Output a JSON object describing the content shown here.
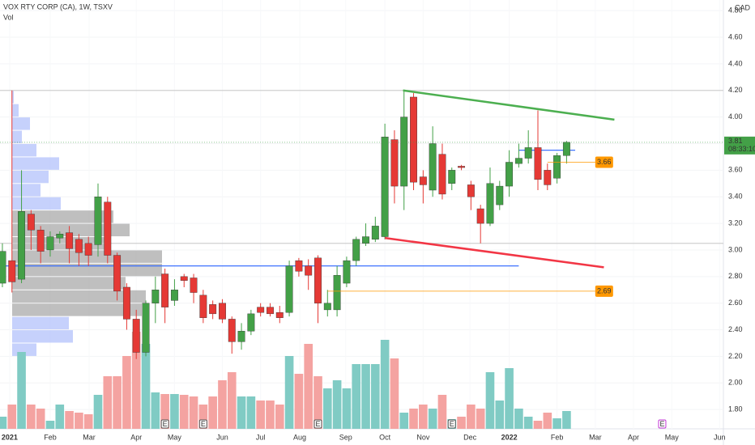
{
  "chart_data": {
    "type": "candlestick",
    "title": "VOX RTY CORP (CA), 1W, TSXV",
    "subtitle": "Vol",
    "currency": "CAD",
    "countdown": "08:33:10",
    "up_color": "#43a047",
    "down_color": "#e53935",
    "volume_up_color": "#80cbc4",
    "volume_down_color": "#f4a3a1",
    "xlim": [
      -0.25,
      75.4
    ],
    "xticks": [
      {
        "value": 0.76,
        "label": "2021"
      },
      {
        "value": 5,
        "label": "Feb"
      },
      {
        "value": 9.07,
        "label": "Mar"
      },
      {
        "value": 14,
        "label": "Apr"
      },
      {
        "value": 18,
        "label": "May"
      },
      {
        "value": 23,
        "label": "Jun"
      },
      {
        "value": 27,
        "label": "Jul"
      },
      {
        "value": 31.1,
        "label": "Aug"
      },
      {
        "value": 35.9,
        "label": "Sep"
      },
      {
        "value": 40,
        "label": "Oct"
      },
      {
        "value": 44,
        "label": "Nov"
      },
      {
        "value": 48.9,
        "label": "Dec"
      },
      {
        "value": 53,
        "label": "2022"
      },
      {
        "value": 58,
        "label": "Feb"
      },
      {
        "value": 62,
        "label": "Mar"
      },
      {
        "value": 66,
        "label": "Apr"
      },
      {
        "value": 70,
        "label": "May"
      },
      {
        "value": 75,
        "label": "Jun"
      }
    ],
    "ylim": [
      1.655,
      4.88
    ],
    "yticks": [
      {
        "value": 1.8,
        "label": "1.80"
      },
      {
        "value": 2,
        "label": "2.00"
      },
      {
        "value": 2.2,
        "label": "2.20"
      },
      {
        "value": 2.4,
        "label": "2.40"
      },
      {
        "value": 2.6,
        "label": "2.60"
      },
      {
        "value": 2.8,
        "label": "2.80"
      },
      {
        "value": 3,
        "label": "3.00"
      },
      {
        "value": 3.2,
        "label": "3.20"
      },
      {
        "value": 3.4,
        "label": "3.40"
      },
      {
        "value": 3.6,
        "label": "3.60"
      },
      {
        "value": 3.8,
        "label": "3.80"
      },
      {
        "value": 4,
        "label": "4.00"
      },
      {
        "value": 4.2,
        "label": "4.20"
      },
      {
        "value": 4.4,
        "label": "4.40"
      },
      {
        "value": 4.6,
        "label": "4.60"
      },
      {
        "value": 4.8,
        "label": "4.80"
      }
    ],
    "open": [
      2.75,
      2.92,
      2.78,
      3.27,
      3.15,
      3.0,
      3.09,
      3.13,
      3.08,
      3.05,
      3.04,
      3.36,
      2.96,
      2.72,
      2.48,
      2.23,
      2.6,
      2.82,
      2.62,
      2.8,
      2.79,
      2.66,
      2.59,
      2.6,
      2.48,
      2.31,
      2.39,
      2.57,
      2.57,
      2.53,
      2.53,
      2.92,
      2.88,
      2.94,
      2.55,
      2.55,
      2.75,
      2.92,
      3.05,
      3.08,
      3.1,
      3.83,
      3.48,
      4.15,
      3.55,
      3.45,
      3.72,
      3.5,
      3.63,
      3.49,
      3.31,
      3.2,
      3.34,
      3.48,
      3.65,
      3.69,
      3.77,
      3.6,
      3.54,
      3.71
    ],
    "high": [
      3.05,
      4.2,
      3.6,
      3.3,
      3.18,
      3.14,
      3.14,
      3.18,
      3.12,
      3.1,
      3.5,
      3.4,
      2.98,
      2.75,
      2.55,
      2.62,
      2.8,
      2.86,
      2.78,
      2.82,
      2.82,
      2.7,
      2.62,
      2.63,
      2.5,
      2.45,
      2.55,
      2.6,
      2.6,
      2.58,
      2.92,
      2.94,
      2.93,
      2.96,
      2.7,
      2.88,
      2.95,
      3.1,
      3.2,
      3.25,
      3.95,
      3.9,
      4.2,
      4.18,
      3.6,
      3.93,
      3.8,
      3.62,
      3.64,
      3.52,
      3.34,
      3.62,
      3.52,
      3.75,
      3.8,
      3.9,
      4.05,
      3.65,
      3.73,
      3.82
    ],
    "low": [
      2.72,
      2.68,
      2.75,
      3.0,
      2.9,
      2.95,
      3.05,
      2.9,
      2.88,
      2.88,
      2.95,
      2.9,
      2.62,
      2.4,
      2.18,
      2.2,
      2.45,
      2.45,
      2.58,
      2.72,
      2.6,
      2.45,
      2.48,
      2.45,
      2.22,
      2.25,
      2.36,
      2.5,
      2.5,
      2.45,
      2.5,
      2.8,
      2.7,
      2.45,
      2.5,
      2.5,
      2.72,
      2.88,
      3.03,
      3.06,
      3.08,
      3.35,
      3.3,
      3.45,
      3.35,
      3.4,
      3.38,
      3.45,
      3.6,
      3.3,
      3.05,
      3.18,
      3.3,
      3.4,
      3.62,
      3.65,
      3.45,
      3.45,
      3.5,
      3.65
    ],
    "close": [
      2.99,
      2.76,
      3.29,
      3.15,
      2.99,
      3.1,
      3.12,
      3.01,
      2.98,
      2.96,
      3.4,
      2.96,
      2.69,
      2.48,
      2.23,
      2.6,
      2.7,
      2.57,
      2.7,
      2.77,
      2.68,
      2.49,
      2.52,
      2.48,
      2.31,
      2.39,
      2.52,
      2.53,
      2.52,
      2.49,
      2.88,
      2.84,
      2.81,
      2.6,
      2.6,
      2.81,
      2.92,
      3.08,
      3.1,
      3.18,
      3.85,
      3.48,
      4.0,
      3.51,
      3.49,
      3.8,
      3.42,
      3.6,
      3.62,
      3.4,
      3.2,
      3.5,
      3.48,
      3.66,
      3.69,
      3.77,
      3.53,
      3.49,
      3.71,
      3.81
    ],
    "volume": [
      15,
      30,
      95,
      30,
      25,
      10,
      30,
      22,
      20,
      18,
      42,
      65,
      65,
      90,
      120,
      105,
      45,
      43,
      43,
      42,
      40,
      30,
      40,
      60,
      70,
      40,
      40,
      35,
      35,
      30,
      90,
      68,
      105,
      65,
      50,
      60,
      50,
      80,
      80,
      80,
      110,
      87,
      20,
      25,
      30,
      25,
      42,
      12,
      15,
      30,
      25,
      70,
      35,
      75,
      25,
      15,
      10,
      20,
      13,
      22
    ],
    "volume_profile": {
      "bins": [
        2.2,
        2.3,
        2.4,
        2.5,
        2.6,
        2.7,
        2.8,
        2.9,
        3.0,
        3.1,
        3.2,
        3.3,
        3.4,
        3.5,
        3.6,
        3.7,
        3.8,
        3.9,
        4.0,
        4.1,
        4.2
      ],
      "values": [
        30,
        75,
        70,
        160,
        165,
        140,
        185,
        185,
        120,
        145,
        125,
        60,
        35,
        45,
        58,
        30,
        12,
        22,
        8,
        2
      ],
      "colors": [
        "#b3c2fb",
        "#b3c2fb",
        "#b3c2fb",
        "#a9a9a9",
        "#a9a9a9",
        "#a9a9a9",
        "#a9a9a9",
        "#a9a9a9",
        "#a9a9a9",
        "#a9a9a9",
        "#a9a9a9",
        "#b3c2fb",
        "#b3c2fb",
        "#b3c2fb",
        "#b3c2fb",
        "#b3c2fb",
        "#b3c2fb",
        "#b3c2fb",
        "#b3c2fb",
        "#b3c2fb"
      ]
    },
    "trend_lines": [
      {
        "color": "#4caf50",
        "x": [
          41.9,
          64
        ],
        "y": [
          4.2,
          3.98
        ]
      },
      {
        "color": "#f23645",
        "x": [
          40,
          62.9
        ],
        "y": [
          3.09,
          2.87
        ]
      }
    ],
    "levels": [
      {
        "color": "#2962ff",
        "value": 2.88,
        "x": [
          -0.25,
          54
        ]
      },
      {
        "color": "#2962ff",
        "value": 3.75,
        "x": [
          54,
          59.9
        ]
      },
      {
        "color": "#d0d0d0",
        "value": 4.2,
        "x": [
          -0.25,
          75.4
        ]
      },
      {
        "color": "#d0d0d0",
        "value": 3.05,
        "x": [
          -0.25,
          75.4
        ]
      }
    ],
    "price_lines": [
      {
        "color": "#ff9800",
        "value": 3.66,
        "x": [
          57,
          62
        ]
      },
      {
        "color": "#ff9800",
        "value": 2.69,
        "x": [
          34,
          62
        ]
      }
    ],
    "last_price": 3.81,
    "events": [
      {
        "x": 17,
        "label": "E",
        "color": "#555555"
      },
      {
        "x": 21,
        "label": "E",
        "color": "#555555"
      },
      {
        "x": 33,
        "label": "E",
        "color": "#555555"
      },
      {
        "x": 47,
        "label": "E",
        "color": "#555555"
      },
      {
        "x": 69,
        "label": "E",
        "color": "#c239d6"
      }
    ]
  }
}
